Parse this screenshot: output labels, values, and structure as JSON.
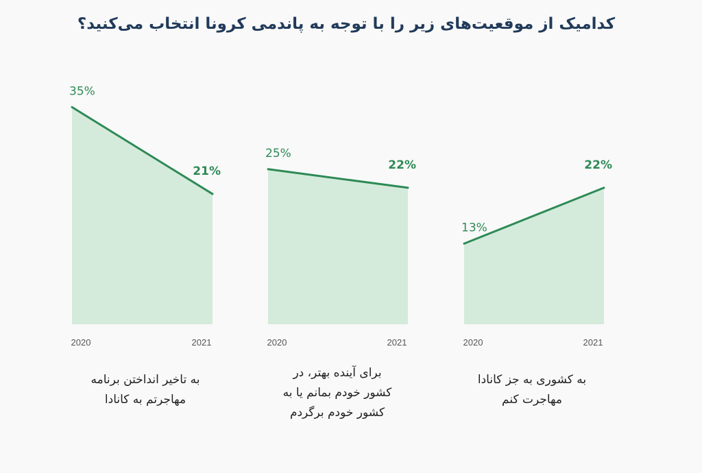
{
  "title": "کدامیک از موقعیت‌های زیر را با توجه به پاندمی کرونا انتخاب می‌کنید؟",
  "colors": {
    "line": "#2e8a56",
    "fill": "#d4ebdb",
    "title": "#213a5a"
  },
  "chart_data": {
    "type": "area",
    "x": [
      "2020",
      "2021"
    ],
    "ylim": [
      0,
      40
    ],
    "panels": [
      {
        "caption": [
          "به تاخیر انداختن برنامه",
          "مهاجرتم به کانادا"
        ],
        "values": [
          35,
          21
        ],
        "labels": [
          "35%",
          "21%"
        ]
      },
      {
        "caption": [
          "برای آینده بهتر، در",
          "کشور خودم بمانم یا به",
          "کشور خودم برگردم"
        ],
        "values": [
          25,
          22
        ],
        "labels": [
          "25%",
          "22%"
        ]
      },
      {
        "caption": [
          "به کشوری به جز کانادا",
          "مهاجرت کنم"
        ],
        "values": [
          13,
          22
        ],
        "labels": [
          "13%",
          "22%"
        ]
      }
    ]
  }
}
